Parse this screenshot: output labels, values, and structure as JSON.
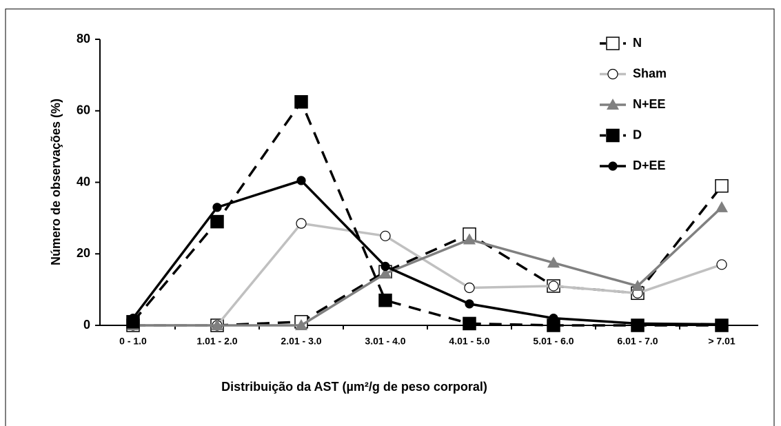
{
  "chart_data": {
    "type": "line",
    "xlabel": "Distribuição da AST (µm²/g de peso corporal)",
    "ylabel": "Número de observações (%)",
    "categories": [
      "0 - 1.0",
      "1.01 - 2.0",
      "2.01 - 3.0",
      "3.01 - 4.0",
      "4.01 - 5.0",
      "5.01 - 6.0",
      "6.01 - 7.0",
      "> 7.01"
    ],
    "ylim": [
      0,
      80
    ],
    "yticks": [
      0,
      20,
      40,
      60,
      80
    ],
    "legend": "top-right",
    "series": [
      {
        "name": "N",
        "color": "#000000",
        "dash": true,
        "marker": "open-square",
        "values": [
          0,
          0,
          1,
          15,
          25.5,
          11,
          9,
          39
        ]
      },
      {
        "name": "Sham",
        "color": "#c0c0c0",
        "dash": false,
        "marker": "open-circle",
        "values": [
          0,
          0,
          28.5,
          25,
          10.5,
          11,
          9,
          17
        ]
      },
      {
        "name": "N+EE",
        "color": "#808080",
        "dash": false,
        "marker": "triangle",
        "values": [
          0,
          0,
          0,
          14.5,
          24,
          17.5,
          11,
          33
        ]
      },
      {
        "name": "D",
        "color": "#000000",
        "dash": true,
        "marker": "filled-square",
        "values": [
          1,
          29,
          62.5,
          7,
          0.5,
          0,
          0,
          0
        ]
      },
      {
        "name": "D+EE",
        "color": "#000000",
        "dash": false,
        "marker": "filled-circle",
        "values": [
          2,
          33,
          40.5,
          16.5,
          6,
          2,
          0.5,
          0.3
        ]
      }
    ]
  }
}
